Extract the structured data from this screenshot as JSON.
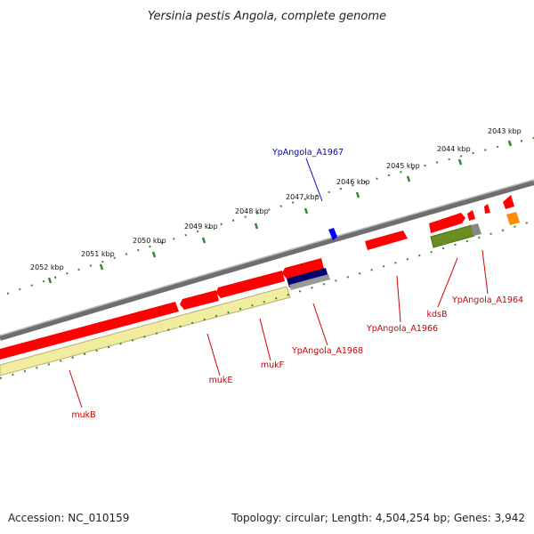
{
  "title": "Yersinia pestis Angola, complete genome",
  "footer": {
    "accession": "Accession: NC_010159",
    "topology": "Topology: circular; Length: 4,504,254 bp; Genes: 3,942"
  },
  "ticks": [
    {
      "text": "2043 kbp"
    },
    {
      "text": "2044 kbp"
    },
    {
      "text": "2045 kbp"
    },
    {
      "text": "2046 kbp"
    },
    {
      "text": "2047 kbp"
    },
    {
      "text": "2048 kbp"
    },
    {
      "text": "2049 kbp"
    },
    {
      "text": "2050 kbp"
    },
    {
      "text": "2051 kbp"
    },
    {
      "text": "2052 kbp"
    }
  ],
  "labels": [
    {
      "text": "YpAngola_A1967"
    },
    {
      "text": "YpAngola_A1964"
    },
    {
      "text": "kdsB"
    },
    {
      "text": "YpAngola_A1966"
    },
    {
      "text": "YpAngola_A1968"
    },
    {
      "text": "mukF"
    },
    {
      "text": "mukE"
    },
    {
      "text": "mukB"
    }
  ],
  "colors": {
    "backbone": "#808080",
    "tick_mark": "#2e8b2e",
    "forward_gene": "#ff0000",
    "reverse_label": "#cc0000",
    "forward_label": "#0000cc",
    "gene_blue": "#0000ff",
    "gene_navy": "#00006e",
    "gene_olive": "#6b8e23",
    "gene_orange": "#ff8c00",
    "gene_pale_yellow": "#f2ec9e"
  }
}
